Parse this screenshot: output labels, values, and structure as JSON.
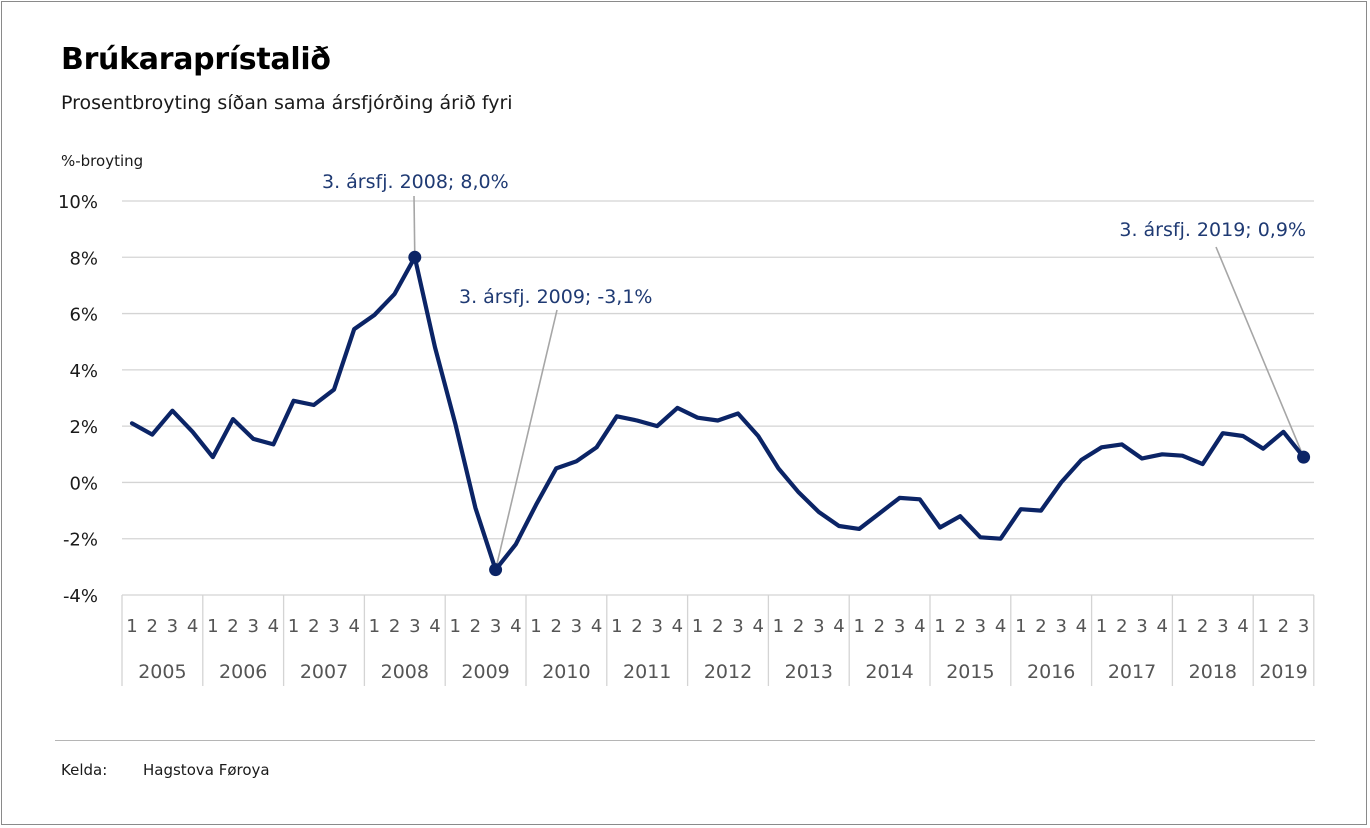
{
  "title": "Brúkaraprístalið",
  "subtitle": "Prosentbroyting síðan sama ársfjórðing árið fyri",
  "source_label": "Kelda:",
  "source_value": "Hagstova Føroya",
  "colors": {
    "line": "#0b2466",
    "grid": "#d4d4d4",
    "leader": "#a6a6a6",
    "annotation": "#1f3a73",
    "axis_text": "#555555"
  },
  "chart_data": {
    "type": "line",
    "ylabel": "%-broyting",
    "ylim": [
      -4,
      10
    ],
    "yticks": [
      10,
      8,
      6,
      4,
      2,
      0,
      -2,
      -4
    ],
    "ytick_labels": [
      "10%",
      "8%",
      "6%",
      "4%",
      "2%",
      "0%",
      "-2%",
      "-4%"
    ],
    "grid": true,
    "years": [
      "2005",
      "2006",
      "2007",
      "2008",
      "2009",
      "2010",
      "2011",
      "2012",
      "2013",
      "2014",
      "2015",
      "2016",
      "2017",
      "2018",
      "2019"
    ],
    "quarter_labels": [
      "1",
      "2",
      "3",
      "4"
    ],
    "series": [
      {
        "values": [
          2.1,
          1.7,
          2.55,
          1.8,
          0.9,
          2.25,
          1.55,
          1.35,
          2.9,
          2.75,
          3.3,
          5.45,
          5.95,
          6.7,
          8.0,
          4.8,
          2.1,
          -0.9,
          -3.1,
          -2.2,
          -0.8,
          0.5,
          0.75,
          1.25,
          2.35,
          2.2,
          2.0,
          2.65,
          2.3,
          2.2,
          2.45,
          1.65,
          0.5,
          -0.35,
          -1.05,
          -1.55,
          -1.65,
          -1.1,
          -0.55,
          -0.6,
          -1.6,
          -1.2,
          -1.95,
          -2.0,
          -0.95,
          -1.0,
          0.0,
          0.8,
          1.25,
          1.35,
          0.85,
          1.0,
          0.95,
          0.65,
          1.75,
          1.65,
          1.2,
          1.8,
          0.9
        ]
      }
    ],
    "annotations": [
      {
        "text": "3. ársfj. 2008; 8,0%",
        "index": 14,
        "value": 8.0
      },
      {
        "text": "3. ársfj. 2009; -3,1%",
        "index": 18,
        "value": -3.1
      },
      {
        "text": "3. ársfj. 2019; 0,9%",
        "index": 58,
        "value": 0.9
      }
    ]
  }
}
